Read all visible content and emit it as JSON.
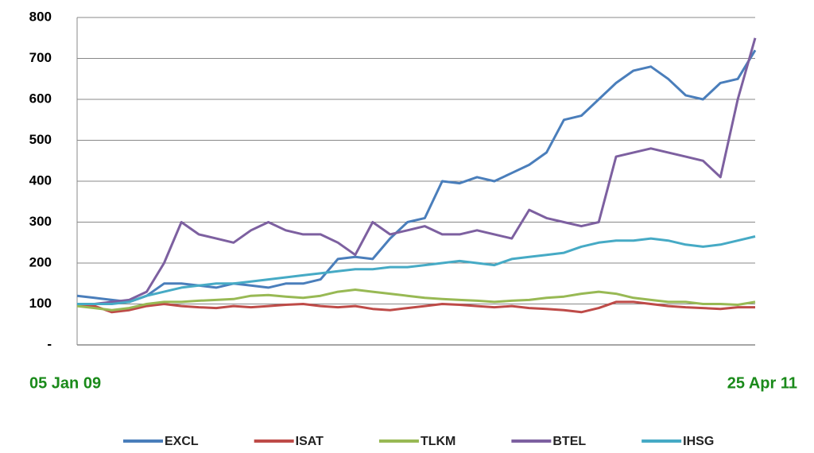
{
  "chart_data": {
    "type": "line",
    "categories": [
      "05 Jan 09",
      null,
      null,
      null,
      null,
      null,
      null,
      null,
      null,
      null,
      null,
      null,
      null,
      null,
      null,
      null,
      null,
      null,
      null,
      null,
      null,
      null,
      null,
      null,
      null,
      null,
      null,
      null,
      null,
      null,
      null,
      null,
      null,
      null,
      null,
      null,
      null,
      null,
      null,
      "25 Apr 11"
    ],
    "series": [
      {
        "name": "EXCL",
        "color": "#4a7ebb",
        "values": [
          120,
          115,
          110,
          105,
          120,
          150,
          150,
          145,
          140,
          150,
          145,
          140,
          150,
          150,
          160,
          210,
          215,
          210,
          260,
          300,
          310,
          400,
          395,
          410,
          400,
          420,
          440,
          470,
          550,
          560,
          600,
          640,
          670,
          680,
          650,
          610,
          600,
          640,
          650,
          720
        ]
      },
      {
        "name": "ISAT",
        "color": "#be4b48",
        "values": [
          100,
          95,
          80,
          85,
          95,
          100,
          95,
          92,
          90,
          95,
          92,
          95,
          98,
          100,
          95,
          92,
          95,
          88,
          85,
          90,
          95,
          100,
          98,
          95,
          92,
          95,
          90,
          88,
          85,
          80,
          90,
          105,
          105,
          100,
          95,
          92,
          90,
          88,
          92,
          92
        ]
      },
      {
        "name": "TLKM",
        "color": "#98b954",
        "values": [
          95,
          90,
          85,
          90,
          100,
          105,
          105,
          108,
          110,
          112,
          120,
          122,
          118,
          115,
          120,
          130,
          135,
          130,
          125,
          120,
          115,
          112,
          110,
          108,
          105,
          108,
          110,
          115,
          118,
          125,
          130,
          125,
          115,
          110,
          105,
          105,
          100,
          100,
          98,
          105
        ]
      },
      {
        "name": "BTEL",
        "color": "#7d60a0",
        "values": [
          100,
          100,
          105,
          110,
          130,
          200,
          300,
          270,
          260,
          250,
          280,
          300,
          280,
          270,
          270,
          250,
          220,
          300,
          270,
          280,
          290,
          270,
          270,
          280,
          270,
          260,
          330,
          310,
          300,
          290,
          300,
          460,
          470,
          480,
          470,
          460,
          450,
          410,
          600,
          750
        ]
      },
      {
        "name": "IHSG",
        "color": "#46aac5",
        "values": [
          100,
          100,
          100,
          105,
          120,
          130,
          140,
          145,
          150,
          150,
          155,
          160,
          165,
          170,
          175,
          180,
          185,
          185,
          190,
          190,
          195,
          200,
          205,
          200,
          195,
          210,
          215,
          220,
          225,
          240,
          250,
          255,
          255,
          260,
          255,
          245,
          240,
          245,
          255,
          265
        ]
      }
    ],
    "ylim": [
      0,
      800
    ],
    "yticks": [
      {
        "value": 0,
        "label": "-"
      },
      100,
      200,
      300,
      400,
      500,
      600,
      700,
      800
    ],
    "grid": true,
    "legend": "bottom"
  }
}
